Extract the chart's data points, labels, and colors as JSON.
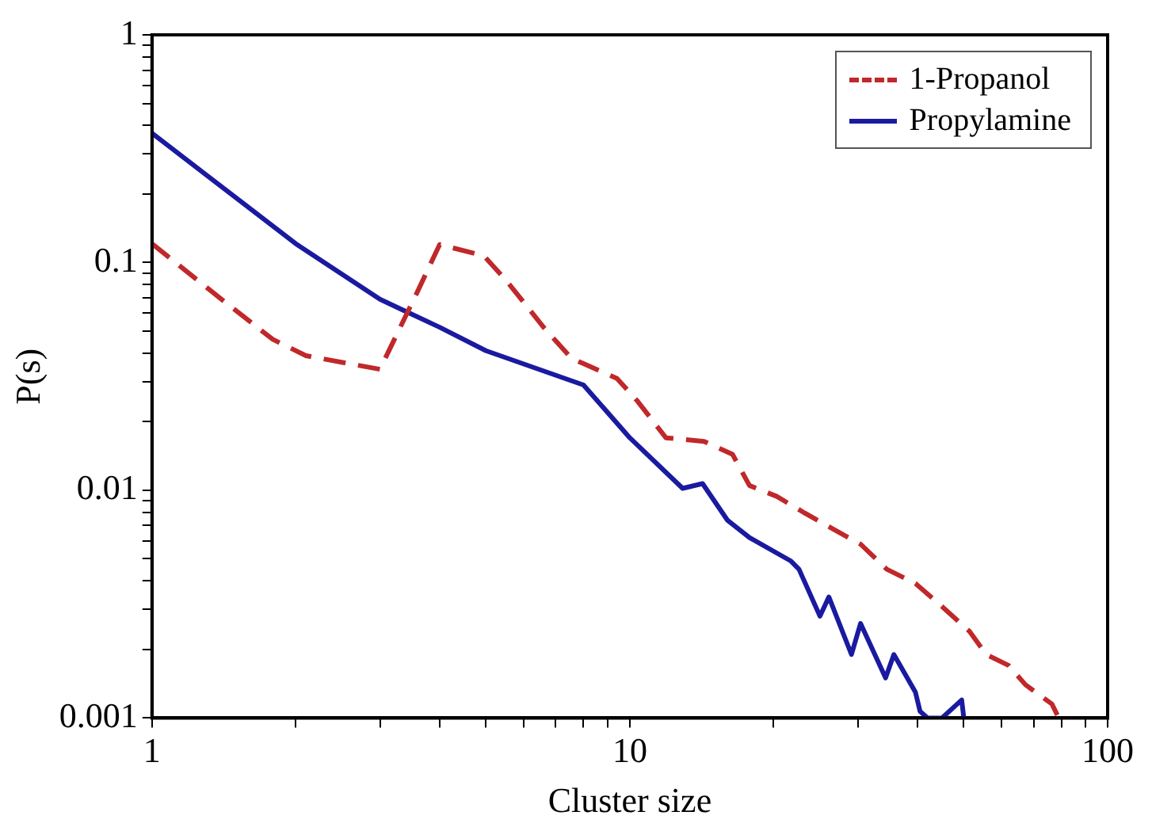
{
  "chart_data": {
    "type": "line",
    "xlabel": "Cluster size",
    "ylabel": "P(s)",
    "log": "xy",
    "legend": "top right",
    "grid": false,
    "marker": "none",
    "xlim": [
      1,
      100
    ],
    "ylim": [
      0.001,
      1
    ],
    "xticks": [
      1,
      {
        "value": 2,
        "label": null
      },
      {
        "value": 3,
        "label": null
      },
      {
        "value": 4,
        "label": null
      },
      {
        "value": 5,
        "label": null
      },
      {
        "value": 6,
        "label": null
      },
      {
        "value": 7,
        "label": null
      },
      {
        "value": 8,
        "label": null
      },
      {
        "value": 9,
        "label": null
      },
      10,
      {
        "value": 20,
        "label": null
      },
      {
        "value": 30,
        "label": null
      },
      {
        "value": 40,
        "label": null
      },
      {
        "value": 50,
        "label": null
      },
      {
        "value": 60,
        "label": null
      },
      {
        "value": 70,
        "label": null
      },
      {
        "value": 80,
        "label": null
      },
      {
        "value": 90,
        "label": null
      },
      100
    ],
    "yticks": [
      0.001,
      {
        "value": 0.002,
        "label": null
      },
      {
        "value": 0.003,
        "label": null
      },
      {
        "value": 0.004,
        "label": null
      },
      {
        "value": 0.005,
        "label": null
      },
      {
        "value": 0.006,
        "label": null
      },
      {
        "value": 0.007,
        "label": null
      },
      {
        "value": 0.008,
        "label": null
      },
      {
        "value": 0.009,
        "label": null
      },
      0.01,
      {
        "value": 0.02,
        "label": null
      },
      {
        "value": 0.03,
        "label": null
      },
      {
        "value": 0.04,
        "label": null
      },
      {
        "value": 0.05,
        "label": null
      },
      {
        "value": 0.06,
        "label": null
      },
      {
        "value": 0.07,
        "label": null
      },
      {
        "value": 0.08,
        "label": null
      },
      {
        "value": 0.09,
        "label": null
      },
      0.1,
      {
        "value": 0.2,
        "label": null
      },
      {
        "value": 0.3,
        "label": null
      },
      {
        "value": 0.4,
        "label": null
      },
      {
        "value": 0.5,
        "label": null
      },
      {
        "value": 0.6,
        "label": null
      },
      {
        "value": 0.7,
        "label": null
      },
      {
        "value": 0.8,
        "label": null
      },
      {
        "value": 0.9,
        "label": null
      },
      1
    ],
    "series": [
      {
        "name": "1-Propanol",
        "color": "#c0282a",
        "line_style": "dashed",
        "x": [
          1,
          1.41,
          1.79,
          2.1,
          3.0,
          3.6,
          4.0,
          4.95,
          5.5,
          6.6,
          7.55,
          8.0,
          9.4,
          10.4,
          11.9,
          14.3,
          16.4,
          17.8,
          20.3,
          23.1,
          26.5,
          30.4,
          34.5,
          39.6,
          44.9,
          51.4,
          55.7,
          62.1,
          67.3,
          76.5,
          79
        ],
        "values": [
          0.121,
          0.068,
          0.046,
          0.039,
          0.034,
          0.075,
          0.12,
          0.107,
          0.084,
          0.052,
          0.038,
          0.036,
          0.031,
          0.0245,
          0.017,
          0.0164,
          0.0144,
          0.0105,
          0.0094,
          0.008,
          0.0068,
          0.0058,
          0.0045,
          0.0039,
          0.0031,
          0.0024,
          0.0019,
          0.0017,
          0.0014,
          0.00115,
          0.001
        ]
      },
      {
        "name": "Propylamine",
        "color": "#1a1aa0",
        "line_style": "solid",
        "x": [
          1,
          2,
          3,
          4,
          5,
          8.0,
          10,
          12.9,
          14.2,
          16.0,
          17.8,
          21.7,
          22.6,
          25.0,
          26.1,
          29.1,
          30.4,
          34.3,
          35.7,
          39.6,
          40.5,
          42,
          45,
          49.5,
          50
        ],
        "values": [
          0.37,
          0.121,
          0.069,
          0.052,
          0.041,
          0.029,
          0.017,
          0.0102,
          0.0107,
          0.0074,
          0.0062,
          0.0049,
          0.0045,
          0.0028,
          0.0034,
          0.0019,
          0.0026,
          0.0015,
          0.0019,
          0.0013,
          0.00107,
          0.001,
          0.001,
          0.0012,
          0.001
        ]
      }
    ]
  }
}
